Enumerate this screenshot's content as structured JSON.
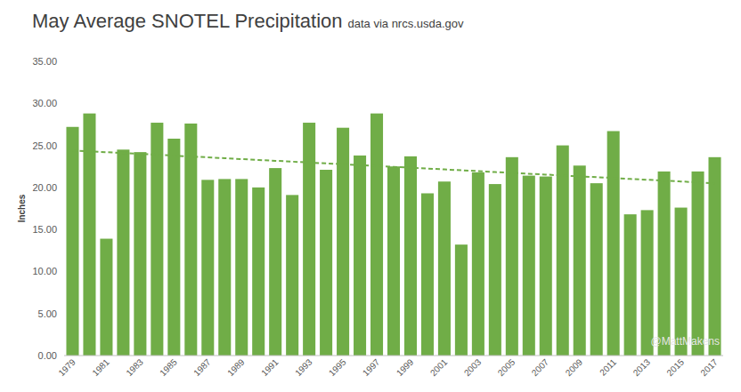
{
  "chart_data": {
    "type": "bar",
    "title": "May Average SNOTEL Precipitation",
    "subtitle": "data via nrcs.usda.gov",
    "y_label": "Inches",
    "annotations": [
      "@MattMakens"
    ],
    "categories": [
      "1979",
      null,
      "1981",
      null,
      "1983",
      null,
      "1985",
      null,
      "1987",
      null,
      "1989",
      null,
      "1991",
      null,
      "1993",
      null,
      "1995",
      null,
      "1997",
      null,
      "1999",
      null,
      "2001",
      null,
      "2003",
      null,
      "2005",
      null,
      "2007",
      null,
      "2009",
      null,
      "2011",
      null,
      "2013",
      null,
      "2015",
      null,
      "2017"
    ],
    "series": [
      {
        "color": "#70ad47",
        "values": [
          27.2,
          28.8,
          13.9,
          24.5,
          24.2,
          27.7,
          25.8,
          27.6,
          20.9,
          21.0,
          21.0,
          20.0,
          22.3,
          19.1,
          27.7,
          22.1,
          27.1,
          23.8,
          28.8,
          22.5,
          23.7,
          19.3,
          20.7,
          13.2,
          21.8,
          20.4,
          23.6,
          21.4,
          21.3,
          25.0,
          22.6,
          20.5,
          26.7,
          16.8,
          17.3,
          21.9,
          17.6,
          21.9,
          23.6
        ]
      },
      {
        "type": "line",
        "line_style": "dashed",
        "color": "#70ad47",
        "values": [
          24.4,
          24.3,
          24.19,
          24.09,
          23.99,
          23.89,
          23.78,
          23.68,
          23.58,
          23.48,
          23.37,
          23.27,
          23.17,
          23.07,
          22.96,
          22.86,
          22.76,
          22.65,
          22.55,
          22.45,
          22.35,
          22.24,
          22.14,
          22.04,
          21.94,
          21.83,
          21.73,
          21.63,
          21.53,
          21.42,
          21.32,
          21.22,
          21.12,
          21.01,
          20.91,
          20.81,
          20.71,
          20.6,
          20.5
        ]
      }
    ],
    "ylim": [
      0,
      35
    ],
    "yticks": [
      {
        "value": 0,
        "label": "0.00"
      },
      {
        "value": 5,
        "label": "5.00"
      },
      {
        "value": 10,
        "label": "10.00"
      },
      {
        "value": 15,
        "label": "15.00"
      },
      {
        "value": 20,
        "label": "20.00"
      },
      {
        "value": 25,
        "label": "25.00"
      },
      {
        "value": 30,
        "label": "30.00"
      },
      {
        "value": 35,
        "label": "35.00"
      }
    ],
    "grid": false
  }
}
